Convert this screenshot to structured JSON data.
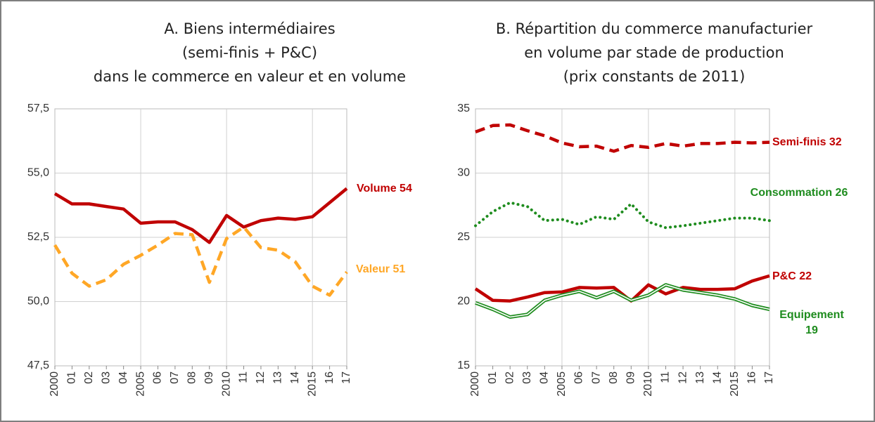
{
  "chart_data": [
    {
      "type": "line",
      "title": [
        "A. Biens intermédiaires",
        "(semi-finis + P&C)",
        "dans le commerce en valeur et en volume"
      ],
      "categories": [
        "2000",
        "01",
        "02",
        "03",
        "04",
        "2005",
        "06",
        "07",
        "08",
        "09",
        "2010",
        "11",
        "12",
        "13",
        "14",
        "2015",
        "16",
        "17"
      ],
      "ylim": [
        47.5,
        57.5
      ],
      "yticks": [
        {
          "value": 47.5,
          "label": "47,5"
        },
        {
          "value": 50,
          "label": "50,0"
        },
        {
          "value": 52.5,
          "label": "52,5"
        },
        {
          "value": 55,
          "label": "55,0"
        },
        {
          "value": 57.5,
          "label": "57,5"
        }
      ],
      "grid": true,
      "series": [
        {
          "name": "Volume 54",
          "color": "#c00000",
          "style": "solid",
          "values": [
            54.2,
            53.8,
            53.8,
            53.7,
            53.6,
            53.05,
            53.1,
            53.1,
            52.8,
            52.3,
            53.35,
            52.9,
            53.15,
            53.25,
            53.2,
            53.3,
            53.85,
            54.4
          ]
        },
        {
          "name": "Valeur 51",
          "color": "#ffa726",
          "style": "dashed",
          "values": [
            52.2,
            51.1,
            50.6,
            50.85,
            51.45,
            51.8,
            52.2,
            52.65,
            52.6,
            50.75,
            52.45,
            52.9,
            52.1,
            52.0,
            51.55,
            50.6,
            50.25,
            51.15
          ]
        }
      ]
    },
    {
      "type": "line",
      "title": [
        "B. Répartition du commerce manufacturier",
        "en volume par stade de production",
        "(prix constants de 2011)"
      ],
      "categories": [
        "2000",
        "01",
        "02",
        "03",
        "04",
        "2005",
        "06",
        "07",
        "08",
        "09",
        "2010",
        "11",
        "12",
        "13",
        "14",
        "2015",
        "16",
        "17"
      ],
      "ylim": [
        15,
        35
      ],
      "yticks": [
        15,
        20,
        25,
        30,
        35
      ],
      "grid": true,
      "series": [
        {
          "name": "Semi-finis 32",
          "color": "#c00000",
          "style": "dashed",
          "values": [
            33.2,
            33.7,
            33.75,
            33.3,
            32.9,
            32.35,
            32.05,
            32.1,
            31.7,
            32.15,
            32.0,
            32.3,
            32.1,
            32.3,
            32.3,
            32.4,
            32.35,
            32.4
          ]
        },
        {
          "name": "Consommation 26",
          "color": "#1e8c1e",
          "style": "dotted",
          "values": [
            25.9,
            27.0,
            27.7,
            27.4,
            26.3,
            26.4,
            26.0,
            26.6,
            26.4,
            27.6,
            26.2,
            25.75,
            25.9,
            26.1,
            26.3,
            26.5,
            26.5,
            26.3
          ]
        },
        {
          "name": "P&C 22",
          "color": "#c00000",
          "style": "solid",
          "values": [
            21.0,
            20.1,
            20.05,
            20.35,
            20.7,
            20.75,
            21.1,
            21.05,
            21.1,
            20.05,
            21.3,
            20.6,
            21.1,
            20.95,
            20.95,
            21.0,
            21.6,
            22.0
          ]
        },
        {
          "name": "Equipement 19",
          "color": "#1e8c1e",
          "style": "double",
          "values": [
            19.9,
            19.4,
            18.8,
            19.0,
            20.1,
            20.5,
            20.8,
            20.3,
            20.8,
            20.1,
            20.5,
            21.3,
            20.9,
            20.7,
            20.5,
            20.2,
            19.7,
            19.4
          ]
        }
      ]
    }
  ]
}
